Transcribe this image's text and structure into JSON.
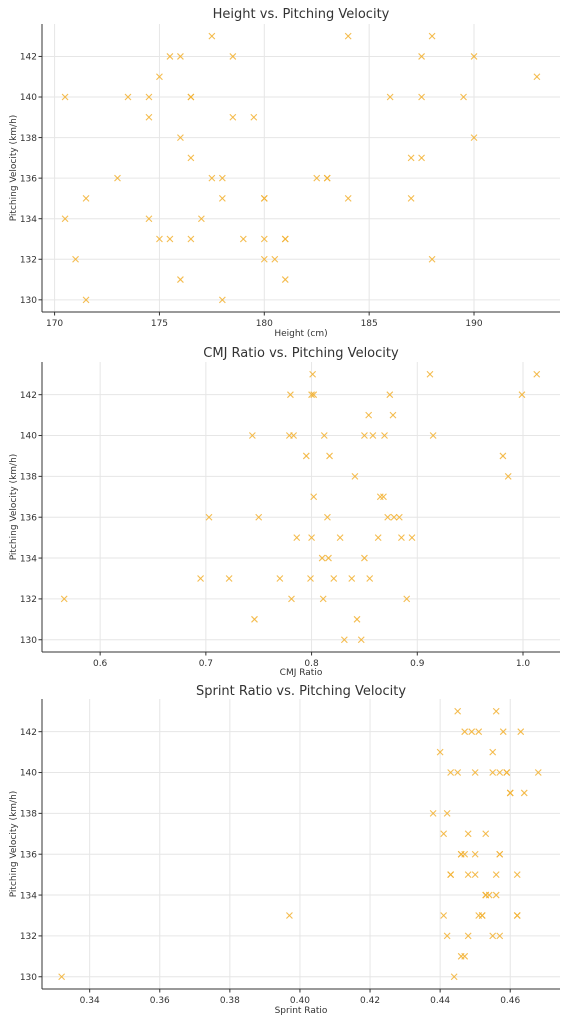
{
  "chart_data": [
    {
      "type": "scatter",
      "title": "Height vs. Pitching Velocity",
      "xlabel": "Height (cm)",
      "ylabel": "Pitching Velocity (km/h)",
      "xlim": [
        169.4,
        194.1
      ],
      "ylim": [
        129.4,
        143.6
      ],
      "xticks": [
        170,
        175,
        180,
        185,
        190
      ],
      "yticks": [
        130,
        132,
        134,
        136,
        138,
        140,
        142
      ],
      "grid": true,
      "marker": "x",
      "color": "#f2b233",
      "points": [
        [
          170.5,
          140
        ],
        [
          170.5,
          134
        ],
        [
          171,
          132
        ],
        [
          171.5,
          135
        ],
        [
          171.5,
          130
        ],
        [
          173,
          136
        ],
        [
          173.5,
          140
        ],
        [
          174.5,
          140
        ],
        [
          174.5,
          139
        ],
        [
          174.5,
          134
        ],
        [
          175,
          141
        ],
        [
          175,
          133
        ],
        [
          175.5,
          142
        ],
        [
          175.5,
          133
        ],
        [
          176,
          142
        ],
        [
          176,
          138
        ],
        [
          176,
          131
        ],
        [
          176.5,
          140
        ],
        [
          176.5,
          140
        ],
        [
          176.5,
          137
        ],
        [
          176.5,
          133
        ],
        [
          177,
          134
        ],
        [
          177.5,
          143
        ],
        [
          177.5,
          136
        ],
        [
          178,
          136
        ],
        [
          178,
          135
        ],
        [
          178,
          130
        ],
        [
          178.5,
          142
        ],
        [
          178.5,
          139
        ],
        [
          179,
          133
        ],
        [
          179.5,
          139
        ],
        [
          180,
          135
        ],
        [
          180,
          135
        ],
        [
          180,
          133
        ],
        [
          180,
          132
        ],
        [
          180.5,
          132
        ],
        [
          181,
          133
        ],
        [
          181,
          133
        ],
        [
          181,
          131
        ],
        [
          182.5,
          136
        ],
        [
          183,
          136
        ],
        [
          183,
          136
        ],
        [
          184,
          143
        ],
        [
          184,
          135
        ],
        [
          186,
          140
        ],
        [
          187,
          137
        ],
        [
          187,
          135
        ],
        [
          187.5,
          142
        ],
        [
          187.5,
          140
        ],
        [
          187.5,
          137
        ],
        [
          188,
          143
        ],
        [
          188,
          132
        ],
        [
          189.5,
          140
        ],
        [
          190,
          142
        ],
        [
          190,
          138
        ],
        [
          193,
          141
        ]
      ]
    },
    {
      "type": "scatter",
      "title": "CMJ Ratio vs. Pitching Velocity",
      "xlabel": "CMJ Ratio",
      "ylabel": "Pitching Velocity (km/h)",
      "xlim": [
        0.545,
        1.035
      ],
      "ylim": [
        129.4,
        143.6
      ],
      "xticks": [
        0.6,
        0.7,
        0.8,
        0.9,
        1.0
      ],
      "xtick_labels": [
        "0.6",
        "0.7",
        "0.8",
        "0.9",
        "1.0"
      ],
      "yticks": [
        130,
        132,
        134,
        136,
        138,
        140,
        142
      ],
      "grid": true,
      "marker": "x",
      "color": "#f2b233",
      "points": [
        [
          0.566,
          132
        ],
        [
          0.695,
          133
        ],
        [
          0.703,
          136
        ],
        [
          0.722,
          133
        ],
        [
          0.744,
          140
        ],
        [
          0.746,
          131
        ],
        [
          0.75,
          136
        ],
        [
          0.77,
          133
        ],
        [
          0.779,
          140
        ],
        [
          0.78,
          142
        ],
        [
          0.781,
          132
        ],
        [
          0.783,
          140
        ],
        [
          0.786,
          135
        ],
        [
          0.795,
          139
        ],
        [
          0.799,
          133
        ],
        [
          0.8,
          135
        ],
        [
          0.8,
          142
        ],
        [
          0.801,
          143
        ],
        [
          0.802,
          142
        ],
        [
          0.802,
          137
        ],
        [
          0.81,
          134
        ],
        [
          0.811,
          132
        ],
        [
          0.812,
          140
        ],
        [
          0.815,
          136
        ],
        [
          0.816,
          134
        ],
        [
          0.817,
          139
        ],
        [
          0.821,
          133
        ],
        [
          0.827,
          135
        ],
        [
          0.831,
          130
        ],
        [
          0.838,
          133
        ],
        [
          0.841,
          138
        ],
        [
          0.843,
          131
        ],
        [
          0.847,
          130
        ],
        [
          0.85,
          140
        ],
        [
          0.85,
          134
        ],
        [
          0.854,
          141
        ],
        [
          0.855,
          133
        ],
        [
          0.858,
          140
        ],
        [
          0.863,
          135
        ],
        [
          0.865,
          137
        ],
        [
          0.868,
          137
        ],
        [
          0.869,
          140
        ],
        [
          0.872,
          136
        ],
        [
          0.874,
          142
        ],
        [
          0.877,
          141
        ],
        [
          0.878,
          136
        ],
        [
          0.883,
          136
        ],
        [
          0.885,
          135
        ],
        [
          0.89,
          132
        ],
        [
          0.895,
          135
        ],
        [
          0.912,
          143
        ],
        [
          0.915,
          140
        ],
        [
          0.999,
          142
        ],
        [
          0.981,
          139
        ],
        [
          0.986,
          138
        ],
        [
          1.013,
          143
        ]
      ]
    },
    {
      "type": "scatter",
      "title": "Sprint Ratio vs. Pitching Velocity",
      "xlabel": "Sprint Ratio",
      "ylabel": "Pitching Velocity (km/h)",
      "xlim": [
        0.3264,
        0.4742
      ],
      "ylim": [
        129.4,
        143.6
      ],
      "xticks": [
        0.34,
        0.36,
        0.38,
        0.4,
        0.42,
        0.44,
        0.46
      ],
      "xtick_labels": [
        "0.34",
        "0.36",
        "0.38",
        "0.40",
        "0.42",
        "0.44",
        "0.46"
      ],
      "yticks": [
        130,
        132,
        134,
        136,
        138,
        140,
        142
      ],
      "grid": true,
      "marker": "x",
      "color": "#f2b233",
      "points": [
        [
          0.332,
          130
        ],
        [
          0.397,
          133
        ],
        [
          0.438,
          138
        ],
        [
          0.44,
          141
        ],
        [
          0.441,
          137
        ],
        [
          0.441,
          133
        ],
        [
          0.442,
          132
        ],
        [
          0.442,
          138
        ],
        [
          0.443,
          135
        ],
        [
          0.443,
          135
        ],
        [
          0.443,
          140
        ],
        [
          0.444,
          130
        ],
        [
          0.445,
          140
        ],
        [
          0.445,
          143
        ],
        [
          0.446,
          136
        ],
        [
          0.446,
          136
        ],
        [
          0.446,
          131
        ],
        [
          0.447,
          131
        ],
        [
          0.447,
          142
        ],
        [
          0.447,
          136
        ],
        [
          0.448,
          132
        ],
        [
          0.448,
          137
        ],
        [
          0.448,
          135
        ],
        [
          0.449,
          142
        ],
        [
          0.45,
          140
        ],
        [
          0.45,
          136
        ],
        [
          0.45,
          135
        ],
        [
          0.451,
          133
        ],
        [
          0.451,
          142
        ],
        [
          0.452,
          133
        ],
        [
          0.452,
          133
        ],
        [
          0.453,
          134
        ],
        [
          0.453,
          134
        ],
        [
          0.453,
          137
        ],
        [
          0.454,
          134
        ],
        [
          0.455,
          140
        ],
        [
          0.455,
          141
        ],
        [
          0.455,
          132
        ],
        [
          0.456,
          143
        ],
        [
          0.456,
          135
        ],
        [
          0.456,
          134
        ],
        [
          0.457,
          136
        ],
        [
          0.457,
          136
        ],
        [
          0.457,
          140
        ],
        [
          0.457,
          132
        ],
        [
          0.458,
          142
        ],
        [
          0.459,
          140
        ],
        [
          0.459,
          140
        ],
        [
          0.46,
          139
        ],
        [
          0.46,
          139
        ],
        [
          0.462,
          133
        ],
        [
          0.462,
          133
        ],
        [
          0.462,
          135
        ],
        [
          0.463,
          142
        ],
        [
          0.464,
          139
        ],
        [
          0.468,
          140
        ]
      ]
    }
  ]
}
